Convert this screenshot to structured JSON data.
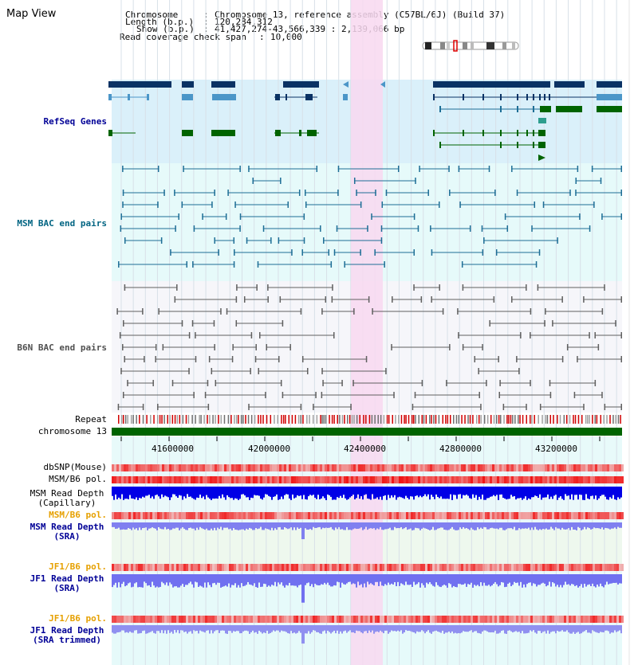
{
  "page": {
    "title": "Map View"
  },
  "info": {
    "chromosome_label": "Chromosome",
    "chromosome_value": "Chromosome 13, reference assembly (C57BL/6J) (Build 37)",
    "length_label": "Length (b.p.)",
    "length_value": "120,284,312",
    "show_label": "Show (b.p.)",
    "show_value": "41,427,274-43,566,339 : 2,139,066 bp",
    "coverage_label": "Read coverage check span",
    "coverage_value": "10,000"
  },
  "tracks": {
    "refseq": "RefSeq Genes",
    "msm_bac": "MSM BAC end pairs",
    "b6n_bac": "B6N BAC end pairs",
    "repeat": "Repeat",
    "chromosome": "chromosome 13",
    "dbsnp": "dbSNP(Mouse)",
    "msm_b6_pol": "MSM/B6 pol.",
    "msm_depth_cap_1": "MSM Read Depth",
    "msm_depth_cap_2": "(Capillary)",
    "msm_b6_pol_2": "MSM/B6 pol.",
    "msm_depth_sra_1": "MSM Read Depth",
    "msm_depth_sra_2": "(SRA)",
    "jf1_b6_pol": "JF1/B6 pol.",
    "jf1_depth_sra_1": "JF1 Read Depth",
    "jf1_depth_sra_2": "(SRA)",
    "jf1_b6_pol_2": "JF1/B6 pol.",
    "jf1_depth_trim_1": "JF1 Read Depth",
    "jf1_depth_trim_2": "(SRA trimmed)"
  },
  "axis": {
    "ticks": [
      "41600000",
      "42000000",
      "42400000",
      "42800000",
      "43200000"
    ]
  },
  "colors": {
    "refseq_bg": "#daf0fa",
    "msm_bg": "#e6fafa",
    "b6n_bg": "#f6f6fa",
    "highlight": "#f8d8f0",
    "refseq_dark": "#0a3264",
    "refseq_mid": "#4b96c8",
    "refseq_green": "#006400",
    "msm_line": "#1e6e96",
    "b6n_line": "#606060",
    "label_blue": "#000096",
    "label_msm": "#006482",
    "label_orange": "#e6a000",
    "chrom_green": "#006400"
  }
}
